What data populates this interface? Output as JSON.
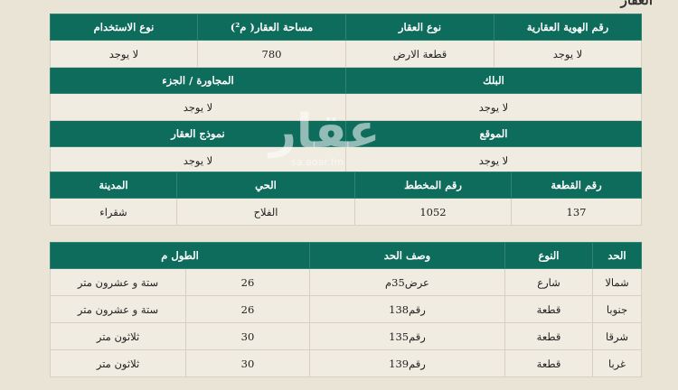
{
  "title": "العقار",
  "property_table": {
    "row1_headers": [
      "رقم الهوية العقارية",
      "نوع العقار",
      "مساحة العقار( م²)",
      "نوع الاستخدام"
    ],
    "row1_values": [
      "لا يوجد",
      "قطعة الارض",
      "780",
      "لا يوجد"
    ],
    "row2_headers": [
      "البلك",
      "المجاورة / الجزء"
    ],
    "row2_values": [
      "لا يوجد",
      "لا يوجد"
    ],
    "row3_headers": [
      "الموقع",
      "نموذج العقار"
    ],
    "row3_values": [
      "لا يوجد",
      "لا يوجد"
    ],
    "row4_headers": [
      "رقم القطعة",
      "رقم المخطط",
      "الحي",
      "المدينة"
    ],
    "row4_values": [
      "137",
      "1052",
      "الفلاح",
      "شقراء"
    ]
  },
  "boundaries_table": {
    "headers": [
      "الحد",
      "النوع",
      "وصف الحد",
      "الطول م"
    ],
    "rows": [
      [
        "شمالا",
        "شارع",
        "عرض35م",
        "26",
        "ستة و عشرون متر"
      ],
      [
        "جنوبا",
        "قطعة",
        "رقم138",
        "26",
        "ستة و عشرون متر"
      ],
      [
        "شرقا",
        "قطعة",
        "رقم135",
        "30",
        "ثلاثون متر"
      ],
      [
        "غربا",
        "قطعة",
        "رقم139",
        "30",
        "ثلاثون متر"
      ]
    ]
  },
  "watermark": {
    "logo": "عقار",
    "site": "sa.aqar.fm"
  },
  "colors": {
    "header_green": "#0e6c5c",
    "background": "#e9e4d5",
    "cell": "#f0ece1"
  }
}
